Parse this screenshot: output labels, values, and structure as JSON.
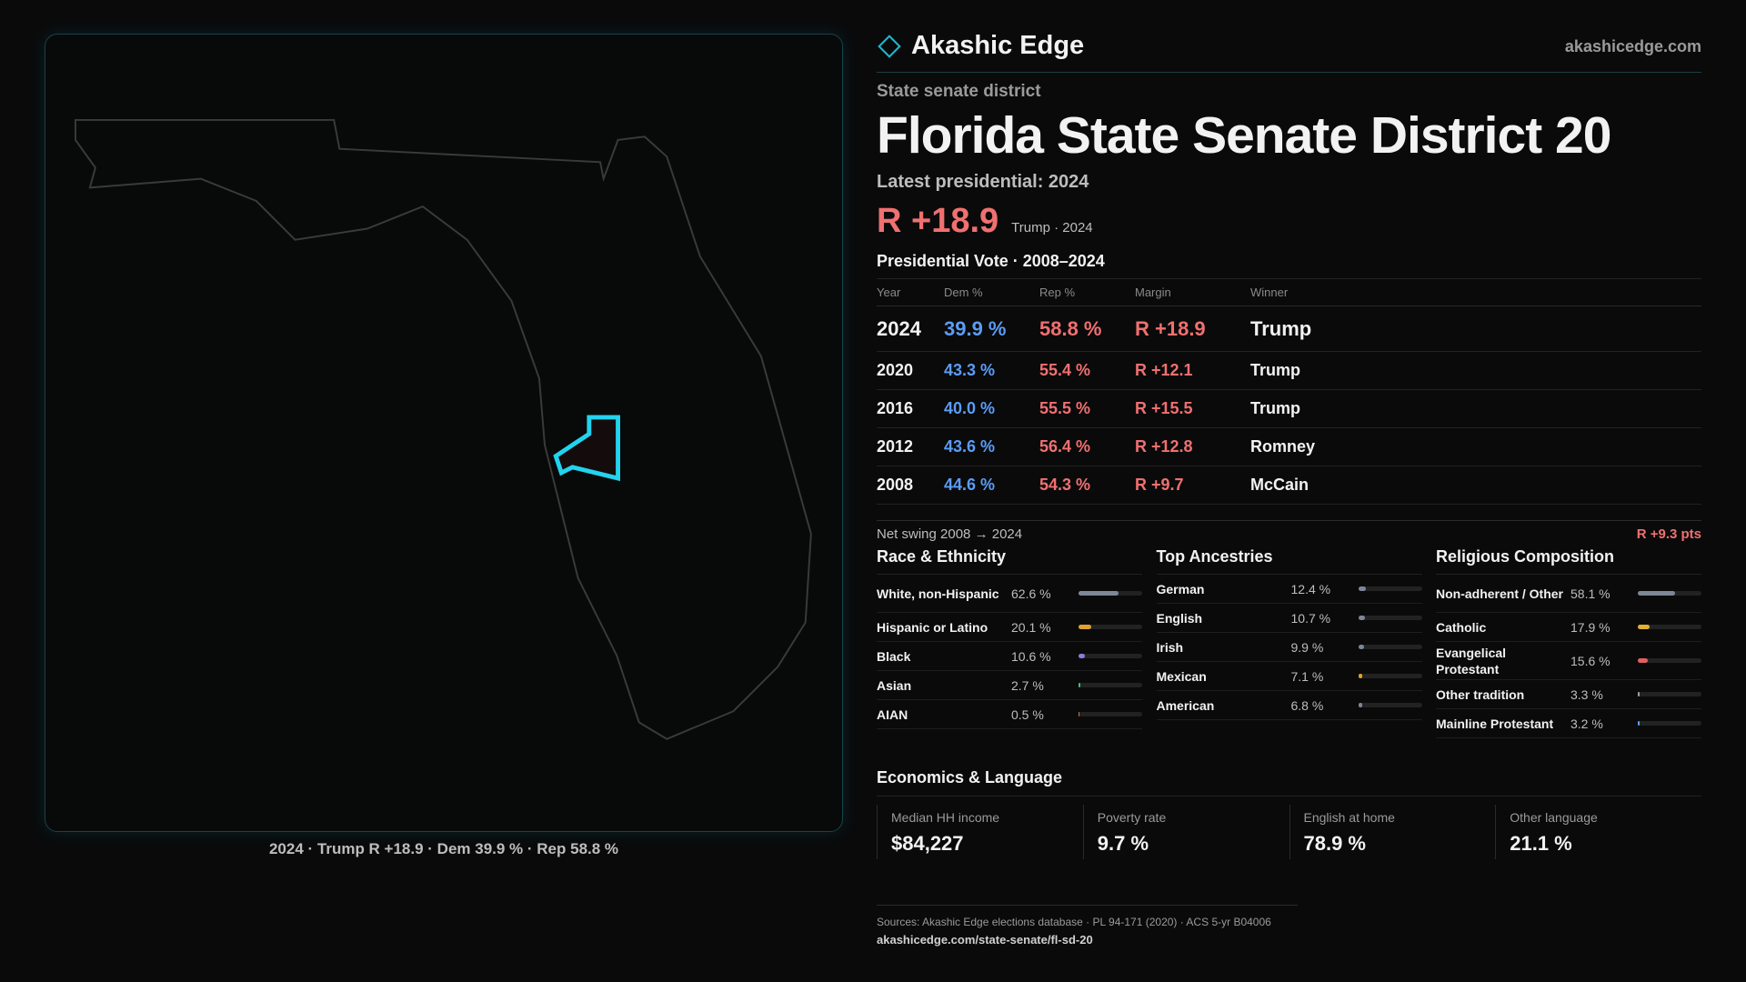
{
  "brand": {
    "name": "Akashic Edge",
    "domain": "akashicedge.com"
  },
  "map": {
    "caption": "2024 · Trump R +18.9 · Dem 39.9 % · Rep 58.8 %"
  },
  "header": {
    "kicker": "State senate district",
    "title": "Florida State Senate District 20",
    "latest": "Latest presidential: 2024",
    "margin": "R +18.9",
    "margin_note": "Trump · 2024"
  },
  "presidential": {
    "title": "Presidential Vote · 2008–2024",
    "columns": [
      "Year",
      "Dem %",
      "Rep %",
      "Margin",
      "Winner"
    ],
    "rows": [
      [
        "2024",
        "39.9 %",
        "58.8 %",
        "R +18.9",
        "Trump"
      ],
      [
        "2020",
        "43.3 %",
        "55.4 %",
        "R +12.1",
        "Trump"
      ],
      [
        "2016",
        "40.0 %",
        "55.5 %",
        "R +15.5",
        "Trump"
      ],
      [
        "2012",
        "43.6 %",
        "56.4 %",
        "R +12.8",
        "Romney"
      ],
      [
        "2008",
        "44.6 %",
        "54.3 %",
        "R +9.7",
        "McCain"
      ]
    ],
    "swing_label": "Net swing 2008 → 2024",
    "swing_value": "R +9.3 pts"
  },
  "panels": [
    {
      "title": "Race & Ethnicity",
      "items": [
        {
          "label": "White, non-Hispanic",
          "value": 62.6,
          "value_label": "62.6 %",
          "color": "#7d8796"
        },
        {
          "label": "Hispanic or Latino",
          "value": 20.1,
          "value_label": "20.1 %",
          "color": "#e0a030"
        },
        {
          "label": "Black",
          "value": 10.6,
          "value_label": "10.6 %",
          "color": "#8d7be0"
        },
        {
          "label": "Asian",
          "value": 2.7,
          "value_label": "2.7 %",
          "color": "#3fbf7a"
        },
        {
          "label": "AIAN",
          "value": 0.5,
          "value_label": "0.5 %",
          "color": "#c07a4a"
        }
      ]
    },
    {
      "title": "Top Ancestries",
      "items": [
        {
          "label": "German",
          "value": 12.4,
          "value_label": "12.4 %",
          "color": "#7d8796"
        },
        {
          "label": "English",
          "value": 10.7,
          "value_label": "10.7 %",
          "color": "#7d8796"
        },
        {
          "label": "Irish",
          "value": 9.9,
          "value_label": "9.9 %",
          "color": "#7d8796"
        },
        {
          "label": "Mexican",
          "value": 7.1,
          "value_label": "7.1 %",
          "color": "#e0a030"
        },
        {
          "label": "American",
          "value": 6.8,
          "value_label": "6.8 %",
          "color": "#7d8796"
        }
      ]
    },
    {
      "title": "Religious Composition",
      "items": [
        {
          "label": "Non-adherent / Other",
          "value": 58.1,
          "value_label": "58.1 %",
          "color": "#7d8796"
        },
        {
          "label": "Catholic",
          "value": 17.9,
          "value_label": "17.9 %",
          "color": "#e0b030"
        },
        {
          "label": "Evangelical Protestant",
          "value": 15.6,
          "value_label": "15.6 %",
          "color": "#e06060"
        },
        {
          "label": "Other tradition",
          "value": 3.3,
          "value_label": "3.3 %",
          "color": "#9aa2ad"
        },
        {
          "label": "Mainline Protestant",
          "value": 3.2,
          "value_label": "3.2 %",
          "color": "#5b9cf5"
        }
      ]
    }
  ],
  "economics": {
    "title": "Economics & Language",
    "cards": [
      {
        "label": "Median HH income",
        "value": "$84,227"
      },
      {
        "label": "Poverty rate",
        "value": "9.7 %"
      },
      {
        "label": "English at home",
        "value": "78.9 %"
      },
      {
        "label": "Other language",
        "value": "21.1 %"
      }
    ]
  },
  "sources": {
    "text": "Sources: Akashic Edge elections database · PL 94-171 (2020) · ACS 5-yr B04006",
    "url": "akashicedge.com/state-senate/fl-sd-20"
  }
}
